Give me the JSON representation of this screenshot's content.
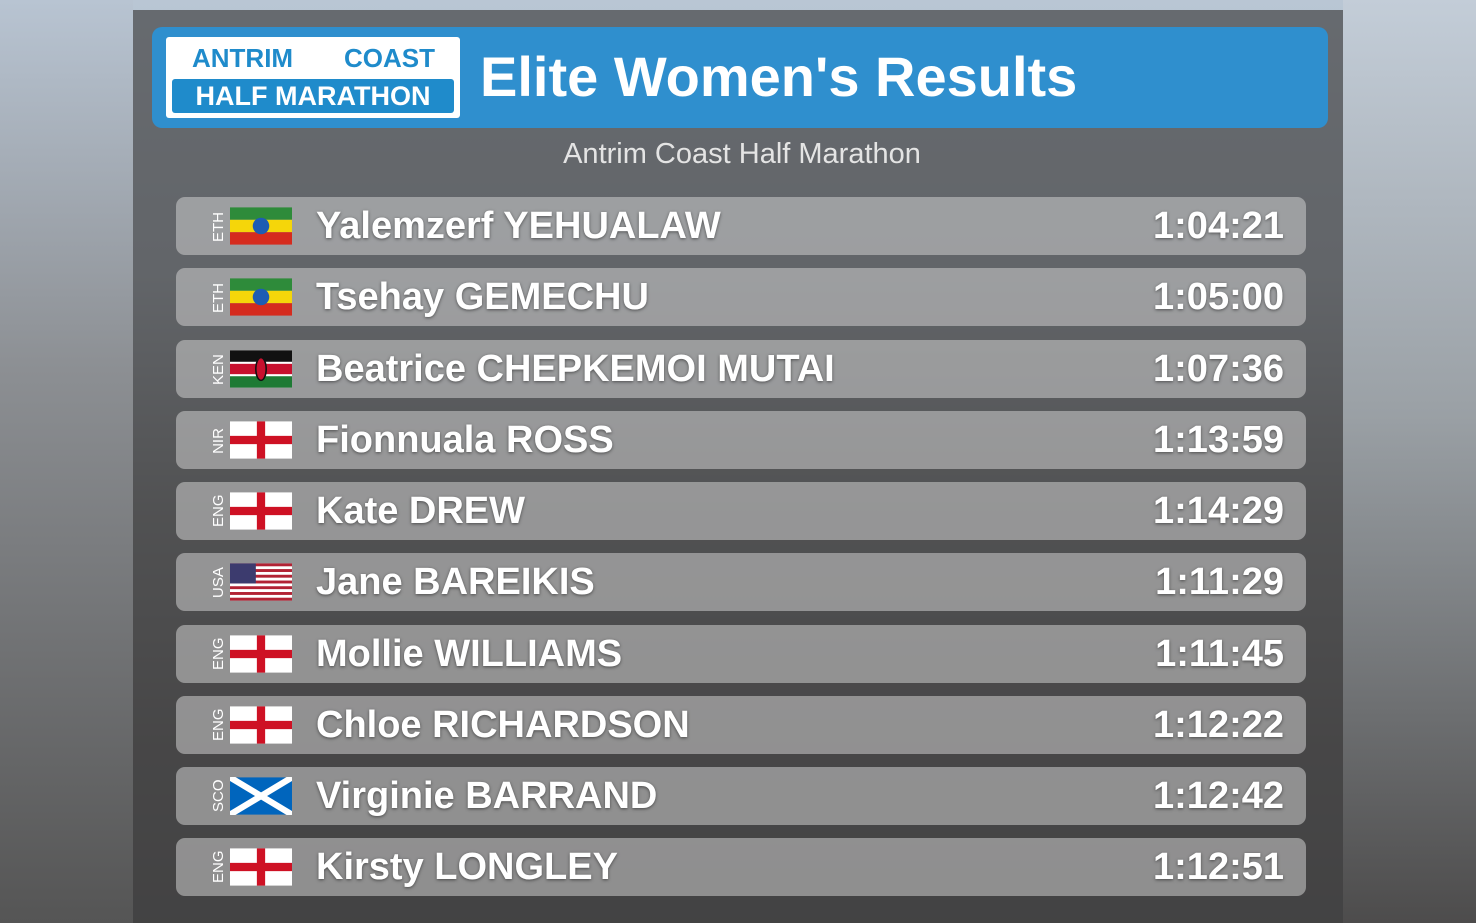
{
  "logo": {
    "line1_left": "ANTRIM",
    "line1_right": "COAST",
    "line2": "HALF MARATHON"
  },
  "header": {
    "title": "Elite Women's Results",
    "subtitle": "Antrim Coast Half Marathon"
  },
  "rows": [
    {
      "code": "ETH",
      "name": "Yalemzerf YEHUALAW",
      "time": "1:04:21"
    },
    {
      "code": "ETH",
      "name": "Tsehay GEMECHU",
      "time": "1:05:00"
    },
    {
      "code": "KEN",
      "name": "Beatrice CHEPKEMOI MUTAI",
      "time": "1:07:36"
    },
    {
      "code": "NIR",
      "name": "Fionnuala ROSS",
      "time": "1:13:59"
    },
    {
      "code": "ENG",
      "name": "Kate DREW",
      "time": "1:14:29"
    },
    {
      "code": "USA",
      "name": "Jane BAREIKIS",
      "time": "1:11:29"
    },
    {
      "code": "ENG",
      "name": "Mollie WILLIAMS",
      "time": "1:11:45"
    },
    {
      "code": "ENG",
      "name": "Chloe RICHARDSON",
      "time": "1:12:22"
    },
    {
      "code": "SCO",
      "name": "Virginie BARRAND",
      "time": "1:12:42"
    },
    {
      "code": "ENG",
      "name": "Kirsty LONGLEY",
      "time": "1:12:51"
    }
  ]
}
